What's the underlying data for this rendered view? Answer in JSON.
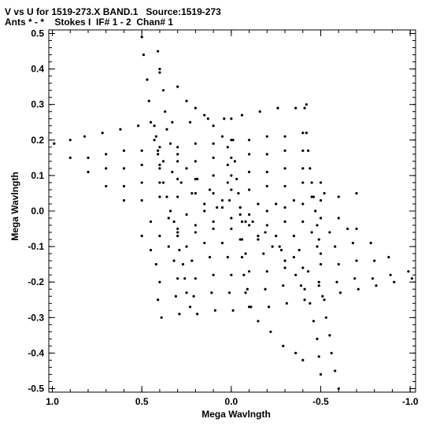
{
  "header": {
    "line1": "V vs U for 1519-273.X BAND.1   Source:1519-273",
    "line2": "Ants * - *    Stokes I  IF# 1 - 2  Chan# 1"
  },
  "chart_data": {
    "type": "scatter",
    "title": "V vs U for 1519-273.X BAND.1   Source:1519-273",
    "subtitle": "Ants * - *    Stokes I  IF# 1 - 2  Chan# 1",
    "xlabel": "Mega Wavlngth",
    "ylabel": "Mega Wavlngth",
    "xlim": [
      1.02,
      -1.03
    ],
    "ylim": [
      -0.51,
      0.51
    ],
    "x_ticks": [
      1.0,
      0.5,
      0.0,
      -0.5,
      -1.0
    ],
    "x_tick_labels": [
      "1.0",
      "0.5",
      "0.0",
      "-0.5",
      "-1.0"
    ],
    "y_ticks": [
      0.5,
      0.4,
      0.3,
      0.2,
      0.1,
      0.0,
      -0.1,
      -0.2,
      -0.3,
      -0.4,
      -0.5
    ],
    "y_tick_labels": [
      "0.5",
      "0.4",
      "0.3",
      "0.2",
      "0.1",
      "0.0",
      "-0.1",
      "-0.2",
      "-0.3",
      "-0.4",
      "-0.5"
    ],
    "grid": false,
    "marker_color": "#000000",
    "series": [
      {
        "points": [
          [
            0.5,
            0.49
          ],
          [
            0.49,
            0.44
          ],
          [
            0.47,
            0.37
          ],
          [
            0.46,
            0.31
          ],
          [
            0.45,
            0.25
          ],
          [
            0.43,
            0.2
          ],
          [
            0.41,
            0.17
          ],
          [
            0.38,
            0.14
          ],
          [
            0.33,
            0.11
          ],
          [
            0.28,
            0.08
          ],
          [
            0.22,
            0.05
          ],
          [
            0.15,
            0.02
          ],
          [
            0.08,
            0.01
          ]
        ]
      },
      {
        "points": [
          [
            0.41,
            0.45
          ],
          [
            0.4,
            0.4
          ],
          [
            0.38,
            0.34
          ],
          [
            0.37,
            0.28
          ],
          [
            0.36,
            0.23
          ],
          [
            0.34,
            0.19
          ],
          [
            0.3,
            0.16
          ],
          [
            0.25,
            0.12
          ],
          [
            0.19,
            0.09
          ],
          [
            0.12,
            0.06
          ],
          [
            0.05,
            0.03
          ]
        ]
      },
      {
        "points": [
          [
            -0.6,
            -0.5
          ],
          [
            -0.58,
            -0.45
          ],
          [
            -0.56,
            -0.4
          ],
          [
            -0.55,
            -0.35
          ],
          [
            -0.53,
            -0.3
          ],
          [
            -0.52,
            -0.25
          ],
          [
            -0.49,
            -0.21
          ],
          [
            -0.43,
            -0.17
          ],
          [
            -0.35,
            -0.13
          ],
          [
            -0.27,
            -0.1
          ],
          [
            -0.19,
            -0.06
          ],
          [
            -0.12,
            -0.03
          ],
          [
            -0.05,
            -0.01
          ]
        ]
      },
      {
        "points": [
          [
            -0.5,
            -0.46
          ],
          [
            -0.49,
            -0.41
          ],
          [
            -0.48,
            -0.36
          ],
          [
            -0.46,
            -0.31
          ],
          [
            -0.44,
            -0.26
          ],
          [
            -0.41,
            -0.22
          ],
          [
            -0.36,
            -0.18
          ],
          [
            -0.3,
            -0.14
          ],
          [
            -0.23,
            -0.1
          ],
          [
            -0.15,
            -0.07
          ],
          [
            -0.08,
            -0.03
          ]
        ]
      },
      {
        "points": [
          [
            0.99,
            0.19
          ],
          [
            0.9,
            0.2
          ],
          [
            0.82,
            0.21
          ],
          [
            0.72,
            0.22
          ],
          [
            0.62,
            0.23
          ],
          [
            0.52,
            0.24
          ],
          [
            0.43,
            0.24
          ],
          [
            0.33,
            0.25
          ],
          [
            0.23,
            0.25
          ],
          [
            0.13,
            0.26
          ],
          [
            0.04,
            0.26
          ],
          [
            -0.06,
            0.27
          ],
          [
            -0.16,
            0.28
          ],
          [
            -0.26,
            0.29
          ],
          [
            -0.36,
            0.29
          ],
          [
            -0.42,
            0.3
          ]
        ]
      },
      {
        "points": [
          [
            0.9,
            0.15
          ],
          [
            0.8,
            0.15
          ],
          [
            0.7,
            0.16
          ],
          [
            0.6,
            0.17
          ],
          [
            0.5,
            0.17
          ],
          [
            0.4,
            0.18
          ],
          [
            0.3,
            0.18
          ],
          [
            0.2,
            0.19
          ],
          [
            0.1,
            0.19
          ],
          [
            0.0,
            0.2
          ],
          [
            -0.1,
            0.2
          ],
          [
            -0.2,
            0.21
          ],
          [
            -0.3,
            0.21
          ],
          [
            -0.4,
            0.22
          ]
        ]
      },
      {
        "points": [
          [
            0.8,
            0.11
          ],
          [
            0.7,
            0.12
          ],
          [
            0.6,
            0.12
          ],
          [
            0.5,
            0.13
          ],
          [
            0.4,
            0.13
          ],
          [
            0.3,
            0.14
          ],
          [
            0.2,
            0.14
          ],
          [
            0.1,
            0.15
          ],
          [
            0.0,
            0.15
          ],
          [
            -0.1,
            0.16
          ],
          [
            -0.2,
            0.16
          ],
          [
            -0.3,
            0.17
          ],
          [
            -0.4,
            0.17
          ]
        ]
      },
      {
        "points": [
          [
            0.7,
            0.07
          ],
          [
            0.6,
            0.07
          ],
          [
            0.5,
            0.08
          ],
          [
            0.4,
            0.08
          ],
          [
            0.3,
            0.09
          ],
          [
            0.2,
            0.09
          ],
          [
            0.1,
            0.1
          ],
          [
            0.0,
            0.1
          ],
          [
            -0.1,
            0.11
          ],
          [
            -0.2,
            0.11
          ],
          [
            -0.3,
            0.12
          ],
          [
            -0.4,
            0.12
          ]
        ]
      },
      {
        "points": [
          [
            0.6,
            0.03
          ],
          [
            0.5,
            0.03
          ],
          [
            0.4,
            0.04
          ],
          [
            0.3,
            0.04
          ],
          [
            0.2,
            0.05
          ],
          [
            0.1,
            0.05
          ],
          [
            0.0,
            0.06
          ],
          [
            -0.1,
            0.06
          ],
          [
            -0.2,
            0.07
          ],
          [
            -0.3,
            0.07
          ],
          [
            -0.4,
            0.08
          ],
          [
            -0.5,
            0.08
          ]
        ]
      },
      {
        "points": [
          [
            0.45,
            -0.03
          ],
          [
            0.35,
            -0.02
          ],
          [
            0.25,
            -0.01
          ],
          [
            0.15,
            0.0
          ],
          [
            0.05,
            0.01
          ],
          [
            -0.05,
            0.01
          ],
          [
            -0.15,
            0.02
          ],
          [
            -0.25,
            0.02
          ],
          [
            -0.35,
            0.03
          ],
          [
            -0.45,
            0.04
          ],
          [
            -0.52,
            0.05
          ]
        ]
      },
      {
        "points": [
          [
            0.3,
            -0.05
          ],
          [
            0.2,
            -0.04
          ],
          [
            0.1,
            -0.03
          ],
          [
            0.0,
            -0.02
          ],
          [
            -0.1,
            -0.01
          ],
          [
            -0.2,
            0.0
          ],
          [
            -0.3,
            0.01
          ],
          [
            -0.4,
            0.02
          ],
          [
            -0.5,
            0.03
          ],
          [
            -0.6,
            0.04
          ],
          [
            -0.7,
            0.05
          ]
        ]
      },
      {
        "points": [
          [
            0.5,
            -0.07
          ],
          [
            0.4,
            -0.07
          ],
          [
            0.3,
            -0.06
          ],
          [
            0.2,
            -0.06
          ],
          [
            0.1,
            -0.05
          ],
          [
            0.0,
            -0.05
          ],
          [
            -0.1,
            -0.04
          ],
          [
            -0.2,
            -0.04
          ],
          [
            -0.3,
            -0.03
          ],
          [
            -0.4,
            -0.03
          ],
          [
            -0.5,
            -0.02
          ],
          [
            -0.6,
            -0.02
          ]
        ]
      },
      {
        "points": [
          [
            0.45,
            -0.11
          ],
          [
            0.35,
            -0.1
          ],
          [
            0.25,
            -0.1
          ],
          [
            0.15,
            -0.09
          ],
          [
            0.05,
            -0.09
          ],
          [
            -0.05,
            -0.08
          ],
          [
            -0.15,
            -0.08
          ],
          [
            -0.25,
            -0.07
          ],
          [
            -0.35,
            -0.07
          ],
          [
            -0.45,
            -0.06
          ],
          [
            -0.55,
            -0.06
          ],
          [
            -0.65,
            -0.05
          ],
          [
            -0.7,
            -0.05
          ]
        ]
      },
      {
        "points": [
          [
            0.42,
            -0.15
          ],
          [
            0.32,
            -0.14
          ],
          [
            0.22,
            -0.14
          ],
          [
            0.12,
            -0.13
          ],
          [
            0.02,
            -0.13
          ],
          [
            -0.08,
            -0.12
          ],
          [
            -0.18,
            -0.12
          ],
          [
            -0.28,
            -0.11
          ],
          [
            -0.38,
            -0.11
          ],
          [
            -0.48,
            -0.1
          ],
          [
            -0.58,
            -0.1
          ],
          [
            -0.68,
            -0.09
          ],
          [
            -0.78,
            -0.09
          ]
        ]
      },
      {
        "points": [
          [
            0.4,
            -0.2
          ],
          [
            0.3,
            -0.19
          ],
          [
            0.2,
            -0.19
          ],
          [
            0.1,
            -0.18
          ],
          [
            0.0,
            -0.18
          ],
          [
            -0.1,
            -0.17
          ],
          [
            -0.2,
            -0.17
          ],
          [
            -0.3,
            -0.16
          ],
          [
            -0.4,
            -0.16
          ],
          [
            -0.5,
            -0.15
          ],
          [
            -0.6,
            -0.15
          ],
          [
            -0.7,
            -0.14
          ],
          [
            -0.8,
            -0.14
          ],
          [
            -0.88,
            -0.13
          ]
        ]
      },
      {
        "points": [
          [
            0.41,
            -0.25
          ],
          [
            0.31,
            -0.24
          ],
          [
            0.21,
            -0.24
          ],
          [
            0.11,
            -0.23
          ],
          [
            0.01,
            -0.23
          ],
          [
            -0.09,
            -0.22
          ],
          [
            -0.19,
            -0.22
          ],
          [
            -0.29,
            -0.21
          ],
          [
            -0.39,
            -0.21
          ],
          [
            -0.49,
            -0.2
          ],
          [
            -0.59,
            -0.2
          ],
          [
            -0.69,
            -0.19
          ],
          [
            -0.79,
            -0.19
          ],
          [
            -0.89,
            -0.18
          ],
          [
            -0.99,
            -0.17
          ],
          [
            -1.01,
            -0.19
          ]
        ]
      },
      {
        "points": [
          [
            0.39,
            -0.3
          ],
          [
            0.29,
            -0.29
          ],
          [
            0.19,
            -0.29
          ],
          [
            0.09,
            -0.28
          ],
          [
            -0.01,
            -0.28
          ],
          [
            -0.11,
            -0.27
          ],
          [
            -0.21,
            -0.27
          ],
          [
            -0.31,
            -0.26
          ],
          [
            -0.41,
            -0.25
          ],
          [
            -0.51,
            -0.24
          ],
          [
            -0.61,
            -0.23
          ],
          [
            -0.71,
            -0.22
          ],
          [
            -0.81,
            -0.21
          ],
          [
            -0.91,
            -0.2
          ]
        ]
      },
      {
        "points": [
          [
            0.4,
            0.39
          ],
          [
            0.3,
            0.35
          ],
          [
            0.25,
            0.31
          ],
          [
            0.2,
            0.29
          ],
          [
            0.15,
            0.27
          ],
          [
            0.1,
            0.24
          ],
          [
            0.05,
            0.21
          ],
          [
            0.02,
            0.18
          ],
          [
            0.02,
            0.13
          ],
          [
            0.02,
            0.08
          ],
          [
            0.01,
            0.03
          ]
        ]
      },
      {
        "points": [
          [
            0.0,
            0.26
          ],
          [
            -0.01,
            0.2
          ],
          [
            -0.02,
            0.14
          ],
          [
            -0.03,
            0.09
          ],
          [
            -0.04,
            0.05
          ],
          [
            -0.05,
            0.01
          ],
          [
            -0.06,
            -0.03
          ],
          [
            -0.06,
            -0.08
          ],
          [
            -0.06,
            -0.13
          ],
          [
            -0.07,
            -0.18
          ],
          [
            -0.08,
            -0.23
          ],
          [
            -0.1,
            -0.27
          ],
          [
            -0.15,
            -0.31
          ],
          [
            -0.22,
            -0.34
          ],
          [
            -0.29,
            -0.38
          ],
          [
            -0.36,
            -0.4
          ],
          [
            -0.4,
            -0.42
          ]
        ]
      },
      {
        "points": [
          [
            -0.41,
            0.29
          ],
          [
            -0.42,
            0.22
          ],
          [
            -0.43,
            0.17
          ],
          [
            -0.44,
            0.12
          ],
          [
            -0.45,
            0.08
          ],
          [
            -0.46,
            0.04
          ],
          [
            -0.47,
            0.0
          ],
          [
            -0.48,
            -0.04
          ],
          [
            -0.49,
            -0.08
          ],
          [
            -0.5,
            -0.12
          ]
        ]
      },
      {
        "points": [
          [
            0.42,
            0.21
          ],
          [
            0.41,
            0.16
          ],
          [
            0.4,
            0.12
          ],
          [
            0.38,
            0.08
          ],
          [
            0.36,
            0.04
          ],
          [
            0.34,
            0.0
          ],
          [
            0.32,
            -0.03
          ],
          [
            0.3,
            -0.07
          ],
          [
            0.29,
            -0.11
          ],
          [
            0.27,
            -0.15
          ],
          [
            0.26,
            -0.19
          ],
          [
            0.25,
            -0.23
          ],
          [
            0.23,
            -0.27
          ]
        ]
      }
    ]
  }
}
